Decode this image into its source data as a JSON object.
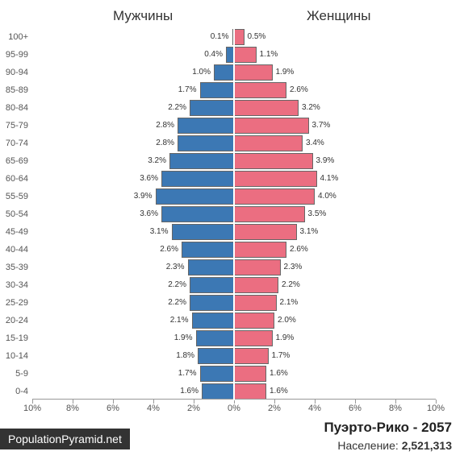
{
  "chart": {
    "type": "population-pyramid",
    "male_label": "Мужчины",
    "female_label": "Женщины",
    "male_color": "#3c78b4",
    "female_color": "#eb6e81",
    "bar_border_color": "#666666",
    "background_color": "#ffffff",
    "text_color": "#333333",
    "header_fontsize": 17,
    "age_label_fontsize": 11,
    "pct_label_fontsize": 10,
    "x_axis": {
      "max_pct": 10,
      "ticks": [
        -10,
        -8,
        -6,
        -4,
        -2,
        0,
        2,
        4,
        6,
        8,
        10
      ],
      "tick_labels": [
        "10%",
        "8%",
        "6%",
        "4%",
        "2%",
        "0%",
        "2%",
        "4%",
        "6%",
        "8%",
        "10%"
      ]
    },
    "age_groups": [
      {
        "label": "100+",
        "male": 0.1,
        "female": 0.5
      },
      {
        "label": "95-99",
        "male": 0.4,
        "female": 1.1
      },
      {
        "label": "90-94",
        "male": 1.0,
        "female": 1.9
      },
      {
        "label": "85-89",
        "male": 1.7,
        "female": 2.6
      },
      {
        "label": "80-84",
        "male": 2.2,
        "female": 3.2
      },
      {
        "label": "75-79",
        "male": 2.8,
        "female": 3.7
      },
      {
        "label": "70-74",
        "male": 2.8,
        "female": 3.4
      },
      {
        "label": "65-69",
        "male": 3.2,
        "female": 3.9
      },
      {
        "label": "60-64",
        "male": 3.6,
        "female": 4.1
      },
      {
        "label": "55-59",
        "male": 3.9,
        "female": 4.0
      },
      {
        "label": "50-54",
        "male": 3.6,
        "female": 3.5
      },
      {
        "label": "45-49",
        "male": 3.1,
        "female": 3.1
      },
      {
        "label": "40-44",
        "male": 2.6,
        "female": 2.6
      },
      {
        "label": "35-39",
        "male": 2.3,
        "female": 2.3
      },
      {
        "label": "30-34",
        "male": 2.2,
        "female": 2.2
      },
      {
        "label": "25-29",
        "male": 2.2,
        "female": 2.1
      },
      {
        "label": "20-24",
        "male": 2.1,
        "female": 2.0
      },
      {
        "label": "15-19",
        "male": 1.9,
        "female": 1.9
      },
      {
        "label": "10-14",
        "male": 1.8,
        "female": 1.7
      },
      {
        "label": "5-9",
        "male": 1.7,
        "female": 1.6
      },
      {
        "label": "0-4",
        "male": 1.6,
        "female": 1.6
      }
    ]
  },
  "footer": {
    "credit": "PopulationPyramid.net",
    "title_country": "Пуэрто-Рико",
    "title_year": "2057",
    "population_label": "Население:",
    "population_value": "2,521,313"
  }
}
